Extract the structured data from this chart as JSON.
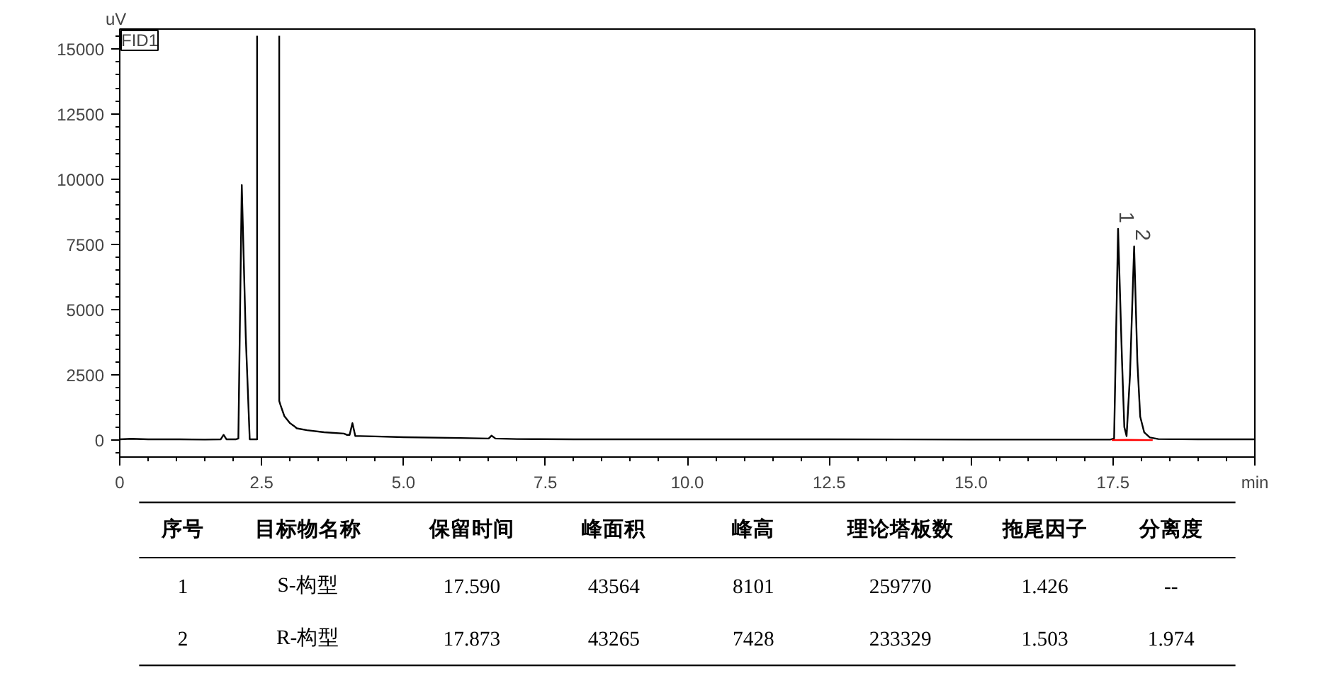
{
  "chart_data": {
    "type": "line",
    "ylabel": "uV",
    "xlim": [
      0,
      20
    ],
    "ylim": [
      -650,
      15760
    ],
    "xticks": [
      0,
      {
        "value": 2.5,
        "label": "2.5"
      },
      {
        "value": 5,
        "label": "5.0"
      },
      {
        "value": 7.5,
        "label": "7.5"
      },
      {
        "value": 10,
        "label": "10.0"
      },
      {
        "value": 12.5,
        "label": "12.5"
      },
      {
        "value": 15,
        "label": "15.0"
      },
      {
        "value": 17.5,
        "label": "17.5"
      },
      {
        "value": 20,
        "label": "min"
      }
    ],
    "yticks": [
      0,
      2500,
      5000,
      7500,
      10000,
      12500,
      15000
    ],
    "grid": false,
    "marker": "none",
    "line_style": "solid",
    "series": [
      {
        "color": "#000000",
        "x": [
          0,
          0.2,
          0.5,
          1.0,
          1.5,
          1.78,
          1.83,
          1.88,
          2.05,
          2.09,
          2.15,
          2.22,
          2.29,
          2.36,
          2.42,
          2.42,
          null,
          2.81,
          2.81,
          2.83,
          2.9,
          3.0,
          3.07,
          3.12,
          3.3,
          3.6,
          3.95,
          4.0,
          4.05,
          4.1,
          4.15,
          4.5,
          5.0,
          6.0,
          6.5,
          6.55,
          6.62,
          7.0,
          8.0,
          10.0,
          12.5,
          15.0,
          17.0,
          17.45,
          17.52,
          17.59,
          17.66,
          17.7,
          17.74,
          17.8,
          17.873,
          17.93,
          17.98,
          18.05,
          18.15,
          18.3,
          19.0,
          20.0
        ],
        "values": [
          30,
          50,
          30,
          30,
          20,
          30,
          200,
          30,
          30,
          60,
          9780,
          4000,
          30,
          30,
          30,
          15500,
          null,
          15500,
          1500,
          1360,
          920,
          650,
          540,
          450,
          380,
          300,
          250,
          200,
          200,
          650,
          160,
          140,
          110,
          80,
          60,
          170,
          60,
          40,
          30,
          30,
          30,
          20,
          20,
          20,
          60,
          8101,
          3000,
          500,
          150,
          2500,
          7428,
          3000,
          900,
          300,
          100,
          40,
          30,
          30
        ]
      },
      {
        "color": "#ff0000",
        "x": [
          17.48,
          17.74,
          18.2
        ],
        "values": [
          0,
          10,
          0
        ]
      }
    ],
    "annotations": [
      "FID1",
      {
        "text": "1",
        "x": 17.59,
        "y": 8101
      },
      {
        "text": "2",
        "x": 17.873,
        "y": 7428
      },
      "序号",
      "目标物名称",
      "保留时间",
      "峰面积",
      "峰高",
      "理论塔板数",
      "拖尾因子",
      "分离度",
      "1",
      "S-构型",
      "17.590",
      "43564",
      "8101",
      "259770",
      "1.426",
      "--",
      "2",
      "R-构型",
      "17.873",
      "43265",
      "7428",
      "233329",
      "1.503",
      "1.974"
    ]
  }
}
